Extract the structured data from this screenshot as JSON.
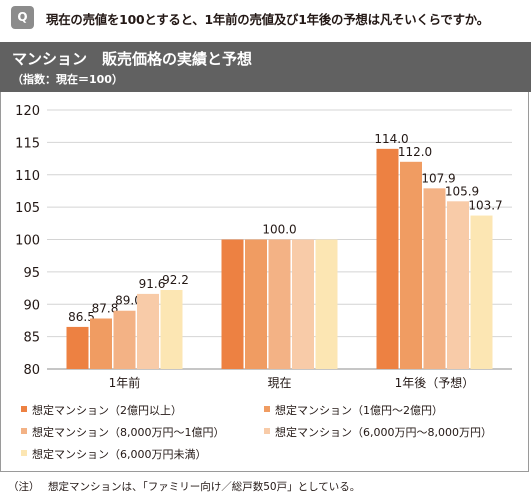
{
  "question": {
    "badge": "Q",
    "text": "現在の売値を100とすると、1年前の売値及び1年後の予想は凡そいくらですか。"
  },
  "chart_header": {
    "title": "マンション　販売価格の実績と予想",
    "subtitle": "（指数：現在＝100）"
  },
  "chart_data": {
    "type": "bar",
    "title": "マンション　販売価格の実績と予想",
    "subtitle": "（指数：現在＝100）",
    "categories": [
      "1年前",
      "現在",
      "1年後（予想）"
    ],
    "ylim": [
      80,
      120
    ],
    "yticks": [
      80,
      85,
      90,
      95,
      100,
      105,
      110,
      115,
      120
    ],
    "grid": true,
    "legend_position": "bottom",
    "series": [
      {
        "name": "想定マンション（2億円以上）",
        "color": "#ED8142",
        "values": [
          86.5,
          100.0,
          114.0
        ],
        "labels": [
          "86.5",
          "",
          "114.0"
        ]
      },
      {
        "name": "想定マンション（1億円～2億円）",
        "color": "#F09C62",
        "values": [
          87.8,
          100.0,
          112.0
        ],
        "labels": [
          "87.8",
          "",
          "112.0"
        ]
      },
      {
        "name": "想定マンション（8,000万円～1億円）",
        "color": "#F3B285",
        "values": [
          89.0,
          100.0,
          107.9
        ],
        "labels": [
          "89.0",
          "100.0",
          "107.9"
        ]
      },
      {
        "name": "想定マンション（6,000万円～8,000万円）",
        "color": "#F8CBA8",
        "values": [
          91.6,
          100.0,
          105.9
        ],
        "labels": [
          "91.6",
          "",
          "105.9"
        ]
      },
      {
        "name": "想定マンション（6,000万円未満）",
        "color": "#FCE6B3",
        "values": [
          92.2,
          100.0,
          103.7
        ],
        "labels": [
          "92.2",
          "",
          "103.7"
        ]
      }
    ]
  },
  "note": {
    "label": "（注）",
    "text": "想定マンションは、「ファミリー向け／総戸数50戸」としている。"
  }
}
